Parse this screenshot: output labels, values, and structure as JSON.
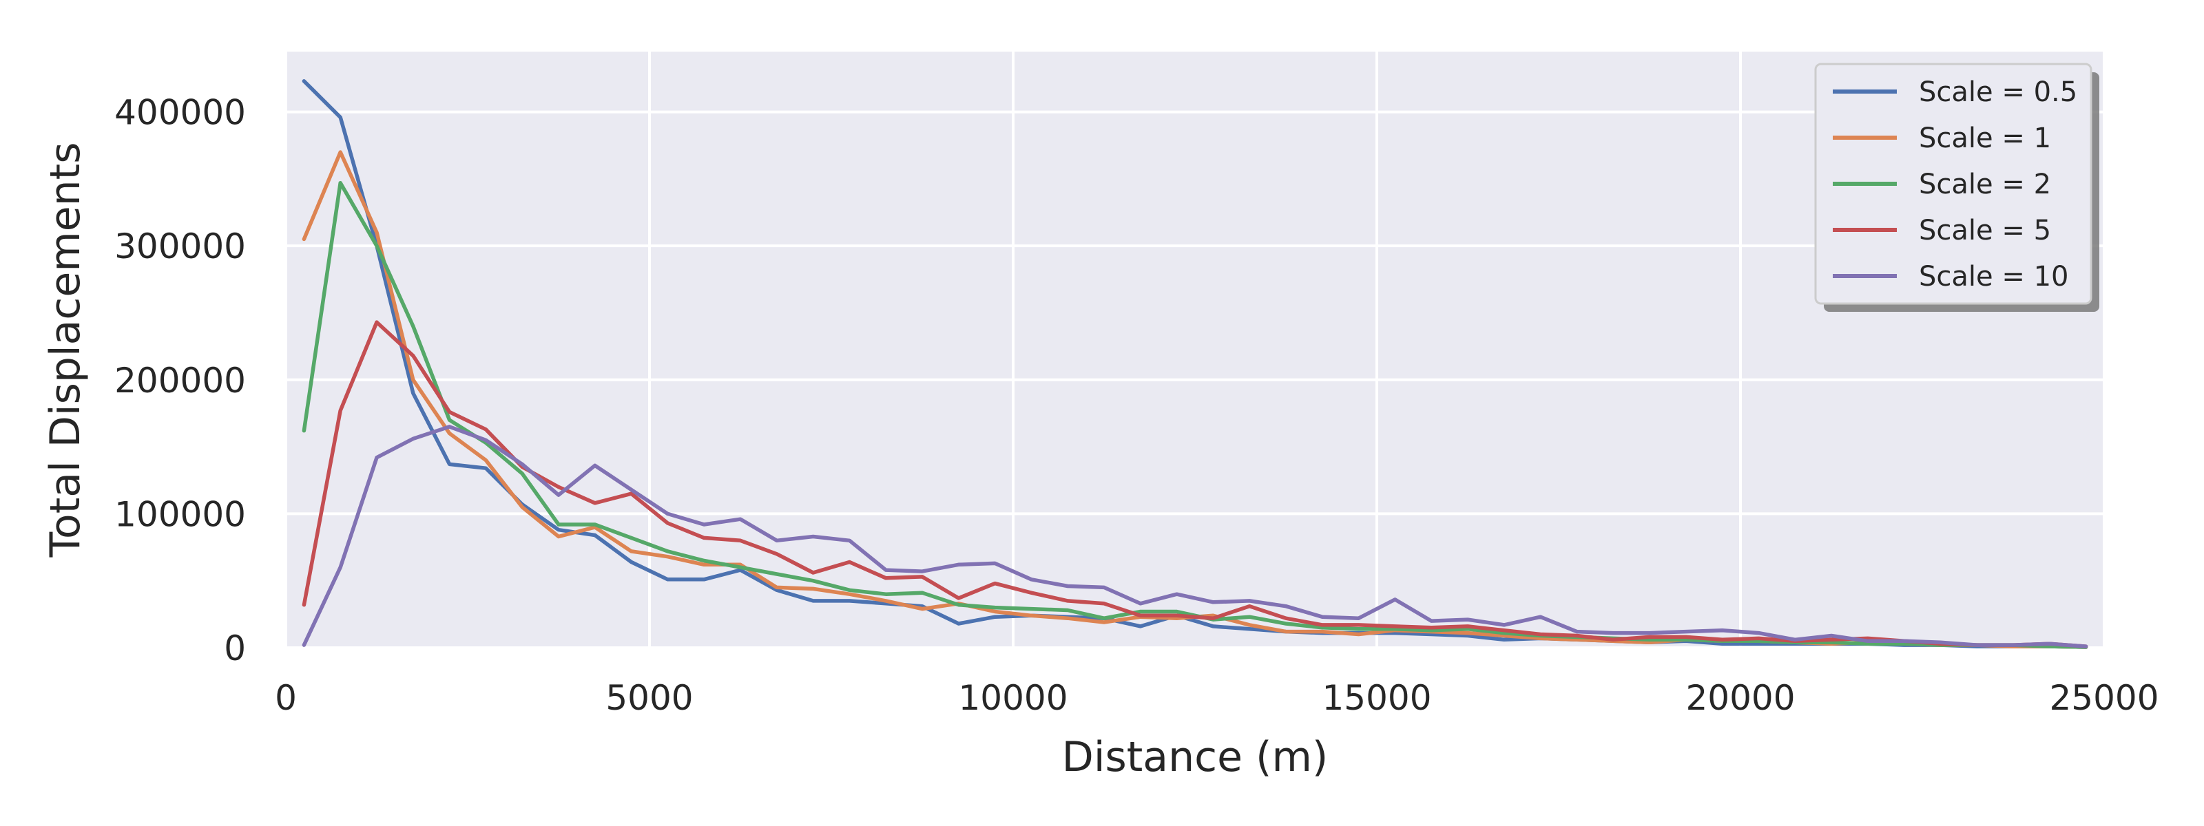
{
  "chart_data": {
    "type": "line",
    "title": "",
    "xlabel": "Distance (m)",
    "ylabel": "Total Displacements",
    "xlim": [
      0,
      25000
    ],
    "ylim": [
      0,
      445000
    ],
    "xticks": [
      0,
      5000,
      10000,
      15000,
      20000,
      25000
    ],
    "yticks": [
      0,
      100000,
      200000,
      300000,
      400000
    ],
    "xtick_labels": [
      "0",
      "5000",
      "10000",
      "15000",
      "20000",
      "25000"
    ],
    "ytick_labels": [
      "0",
      "100000",
      "200000",
      "300000",
      "400000"
    ],
    "grid": true,
    "legend_position": "top-right",
    "x": [
      250,
      750,
      1250,
      1750,
      2250,
      2750,
      3250,
      3750,
      4250,
      4750,
      5250,
      5750,
      6250,
      6750,
      7250,
      7750,
      8250,
      8750,
      9250,
      9750,
      10250,
      10750,
      11250,
      11750,
      12250,
      12750,
      13250,
      13750,
      14250,
      14750,
      15250,
      15750,
      16250,
      16750,
      17250,
      17750,
      18250,
      18750,
      19250,
      19750,
      20250,
      20750,
      21250,
      21750,
      22250,
      22750,
      23250,
      23750,
      24250,
      24750
    ],
    "series": [
      {
        "name": "Scale = 0.5",
        "color": "#4c72b0",
        "values": [
          423000,
          396000,
          300000,
          190000,
          137000,
          134000,
          107000,
          88000,
          84000,
          64000,
          51000,
          51000,
          58000,
          43000,
          35000,
          35000,
          33000,
          31000,
          18000,
          23000,
          24000,
          23000,
          22000,
          16000,
          24000,
          16000,
          14000,
          12000,
          11000,
          11000,
          11000,
          10000,
          9000,
          6000,
          7000,
          6000,
          5000,
          4000,
          5000,
          3000,
          3000,
          3000,
          3000,
          3000,
          2000,
          2000,
          1000,
          1000,
          1000,
          500
        ]
      },
      {
        "name": "Scale = 1",
        "color": "#dd8452",
        "values": [
          305000,
          370000,
          310000,
          200000,
          160000,
          140000,
          105000,
          83000,
          90000,
          72000,
          68000,
          62000,
          62000,
          45000,
          44000,
          40000,
          35000,
          29000,
          33000,
          27000,
          24000,
          22000,
          19000,
          23000,
          22000,
          24000,
          17000,
          12000,
          12000,
          10000,
          13000,
          12000,
          11000,
          9000,
          7000,
          6000,
          5000,
          4000,
          6000,
          5000,
          5000,
          4000,
          3000,
          4000,
          3000,
          2000,
          2000,
          1000,
          1000,
          500
        ]
      },
      {
        "name": "Scale = 2",
        "color": "#55a868",
        "values": [
          162000,
          347000,
          300000,
          240000,
          170000,
          153000,
          130000,
          92000,
          92000,
          82000,
          72000,
          65000,
          60000,
          55000,
          50000,
          43000,
          40000,
          41000,
          32000,
          30000,
          29000,
          28000,
          22000,
          27000,
          27000,
          21000,
          23000,
          18000,
          15000,
          14000,
          14000,
          13000,
          14000,
          11000,
          9000,
          8000,
          7000,
          6000,
          6000,
          5000,
          5000,
          4000,
          4000,
          3000,
          3000,
          2000,
          2000,
          2000,
          1000,
          500
        ]
      },
      {
        "name": "Scale = 5",
        "color": "#c44e52",
        "values": [
          32000,
          177000,
          243000,
          218000,
          176000,
          163000,
          135000,
          120000,
          108000,
          115000,
          93000,
          82000,
          80000,
          70000,
          56000,
          64000,
          52000,
          53000,
          37000,
          48000,
          41000,
          35000,
          33000,
          24000,
          24000,
          22000,
          31000,
          22000,
          17000,
          17000,
          16000,
          15000,
          16000,
          13000,
          10000,
          9000,
          6000,
          8000,
          8000,
          6000,
          7000,
          5000,
          6000,
          7000,
          5000,
          3000,
          2000,
          2000,
          3000,
          1000
        ]
      },
      {
        "name": "Scale = 10",
        "color": "#8172b3",
        "values": [
          2000,
          60000,
          142000,
          156000,
          165000,
          155000,
          137000,
          114000,
          136000,
          118000,
          100000,
          92000,
          96000,
          80000,
          83000,
          80000,
          58000,
          57000,
          62000,
          63000,
          51000,
          46000,
          45000,
          33000,
          40000,
          34000,
          35000,
          31000,
          23000,
          22000,
          36000,
          20000,
          21000,
          17000,
          23000,
          12000,
          11000,
          11000,
          12000,
          13000,
          11000,
          6000,
          9000,
          5000,
          5000,
          4000,
          2000,
          2000,
          3000,
          1000
        ]
      }
    ]
  }
}
